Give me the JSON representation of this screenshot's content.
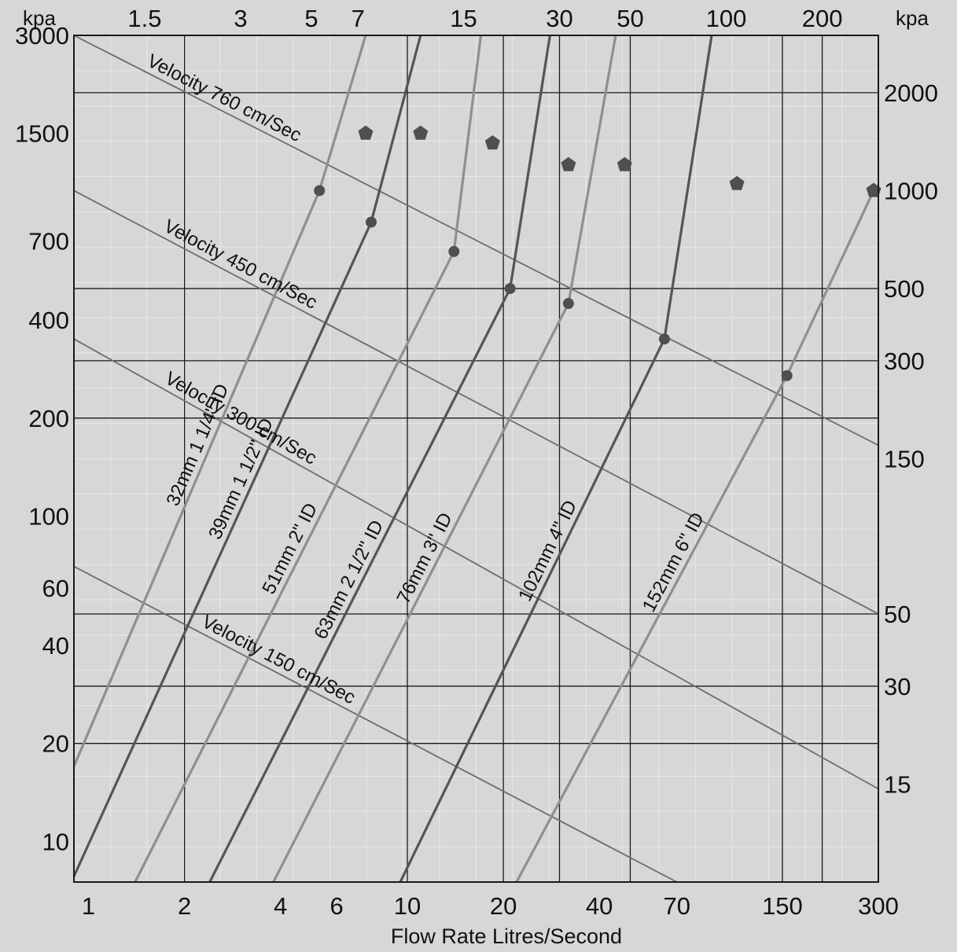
{
  "chart_data": {
    "type": "line",
    "title": "",
    "xlabel": "Flow Rate Litres/Second",
    "x_scale": "log",
    "xlim": [
      0.9,
      300
    ],
    "x_tick_labels": [
      "1",
      "2",
      "4",
      "6",
      "10",
      "20",
      "40",
      "70",
      "150",
      "300"
    ],
    "x_tick_values": [
      1,
      2,
      4,
      6,
      10,
      20,
      40,
      70,
      150,
      300
    ],
    "top_tick_labels": [
      "1.5",
      "3",
      "5",
      "7",
      "15",
      "30",
      "50",
      "100",
      "200"
    ],
    "top_tick_values": [
      1.5,
      3,
      5,
      7,
      15,
      30,
      50,
      100,
      200
    ],
    "left_unit": "kpa",
    "right_unit": "kpa",
    "left_tick_labels": [
      "3000",
      "1500",
      "700",
      "400",
      "200",
      "100",
      "60",
      "40",
      "20",
      "10"
    ],
    "left_tick_values": [
      3000,
      1500,
      700,
      400,
      200,
      100,
      60,
      40,
      20,
      10
    ],
    "right_tick_labels": [
      "2000",
      "1000",
      "500",
      "300",
      "150",
      "50",
      "30",
      "15"
    ],
    "right_tick_values": [
      2000,
      1000,
      500,
      300,
      150,
      50,
      30,
      15
    ],
    "y_scale": "log",
    "ylim": [
      7.5,
      3000
    ],
    "grid_x": [
      2,
      10,
      20,
      30,
      50,
      150,
      200
    ],
    "grid_y": [
      2000,
      500,
      300,
      200,
      50,
      30,
      20
    ],
    "colors": {
      "background": "#d7d7d7",
      "grid": "#1a1a1a",
      "pipe_dark": "#555555",
      "pipe_light": "#8f8f8f",
      "velocity": "#6d6d6d",
      "marker": "#4f4f4f"
    },
    "series": [
      {
        "name": "32mm 1 1/4\" ID",
        "color": "#8f8f8f",
        "points": [
          [
            0.9,
            17
          ],
          [
            5.3,
            1000
          ],
          [
            7.4,
            3000
          ]
        ],
        "marker_circle": [
          5.3,
          1000
        ],
        "marker_pentagon": [
          7.4,
          1500
        ]
      },
      {
        "name": "39mm 1 1/2\" ID",
        "color": "#555555",
        "points": [
          [
            0.9,
            7.8
          ],
          [
            7.7,
            800
          ],
          [
            11,
            3000
          ]
        ],
        "marker_circle": [
          7.7,
          800
        ],
        "marker_pentagon": [
          11,
          1500
        ]
      },
      {
        "name": "51mm 2\" ID",
        "color": "#8f8f8f",
        "points": [
          [
            1.4,
            7.5
          ],
          [
            14,
            650
          ],
          [
            17,
            3000
          ]
        ],
        "marker_circle": [
          14,
          650
        ],
        "marker_pentagon": [
          18.5,
          1400
        ]
      },
      {
        "name": "63mm 2 1/2\" ID",
        "color": "#555555",
        "points": [
          [
            2.4,
            7.5
          ],
          [
            21,
            500
          ],
          [
            28,
            3000
          ]
        ],
        "marker_circle": [
          21,
          500
        ],
        "marker_pentagon": [
          32,
          1200
        ]
      },
      {
        "name": "76mm 3\" ID",
        "color": "#8f8f8f",
        "points": [
          [
            3.8,
            7.5
          ],
          [
            32,
            450
          ],
          [
            45,
            3000
          ]
        ],
        "marker_circle": [
          32,
          450
        ],
        "marker_pentagon": [
          48,
          1200
        ]
      },
      {
        "name": "102mm 4\" ID",
        "color": "#555555",
        "points": [
          [
            9.5,
            7.5
          ],
          [
            64,
            350
          ],
          [
            90,
            3000
          ]
        ],
        "marker_circle": [
          64,
          350
        ],
        "marker_pentagon": [
          108,
          1050
        ]
      },
      {
        "name": "152mm 6\" ID",
        "color": "#8f8f8f",
        "points": [
          [
            22,
            7.5
          ],
          [
            155,
            270
          ],
          [
            290,
            1000
          ]
        ],
        "marker_circle": [
          155,
          270
        ],
        "marker_pentagon": [
          290,
          1000
        ]
      }
    ],
    "velocity_lines": [
      {
        "name": "Velocity 760 cm/Sec",
        "points": [
          [
            0.9,
            3000
          ],
          [
            300,
            165
          ]
        ]
      },
      {
        "name": "Velocity 450 cm/Sec",
        "points": [
          [
            0.9,
            1000
          ],
          [
            300,
            50
          ]
        ]
      },
      {
        "name": "Velocity 300 cm/Sec",
        "points": [
          [
            0.9,
            350
          ],
          [
            300,
            14.5
          ]
        ]
      },
      {
        "name": "Velocity 150 cm/Sec",
        "points": [
          [
            0.9,
            70
          ],
          [
            70,
            7.5
          ]
        ]
      }
    ]
  }
}
